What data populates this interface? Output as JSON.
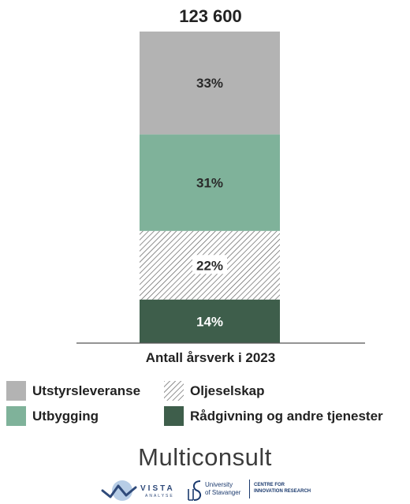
{
  "chart_data": {
    "type": "bar",
    "stacked": true,
    "total_label": "123 600",
    "xlabel": "Antall årsverk i 2023",
    "categories": [
      "Antall årsverk i 2023"
    ],
    "series": [
      {
        "name": "Rådgivning og andre tjenester",
        "values": [
          14
        ],
        "label": "14%",
        "color": "#3e5e4b",
        "pattern": "solid"
      },
      {
        "name": "Oljeselskap",
        "values": [
          22
        ],
        "label": "22%",
        "color": "#555555",
        "pattern": "diagonal-hatch"
      },
      {
        "name": "Utbygging",
        "values": [
          31
        ],
        "label": "31%",
        "color": "#7fb29a",
        "pattern": "solid"
      },
      {
        "name": "Utstyrsleveranse",
        "values": [
          33
        ],
        "label": "33%",
        "color": "#b3b3b3",
        "pattern": "solid"
      }
    ],
    "ylim": [
      0,
      100
    ],
    "unit": "%"
  },
  "legend": [
    {
      "label": "Utstyrsleveranse",
      "color": "#b3b3b3",
      "pattern": "solid"
    },
    {
      "label": "Oljeselskap",
      "color": "#555555",
      "pattern": "diagonal-hatch"
    },
    {
      "label": "Utbygging",
      "color": "#7fb29a",
      "pattern": "solid"
    },
    {
      "label": "Rådgivning og andre tjenester",
      "color": "#3e5e4b",
      "pattern": "solid"
    }
  ],
  "logos": {
    "main": "Multiconsult",
    "vista": "VISTA",
    "vista_sub": "ANALYSE",
    "uis_line1": "University",
    "uis_line2": "of Stavanger",
    "cir_line1": "CENTRE FOR",
    "cir_line2": "INNOVATION RESEARCH"
  }
}
